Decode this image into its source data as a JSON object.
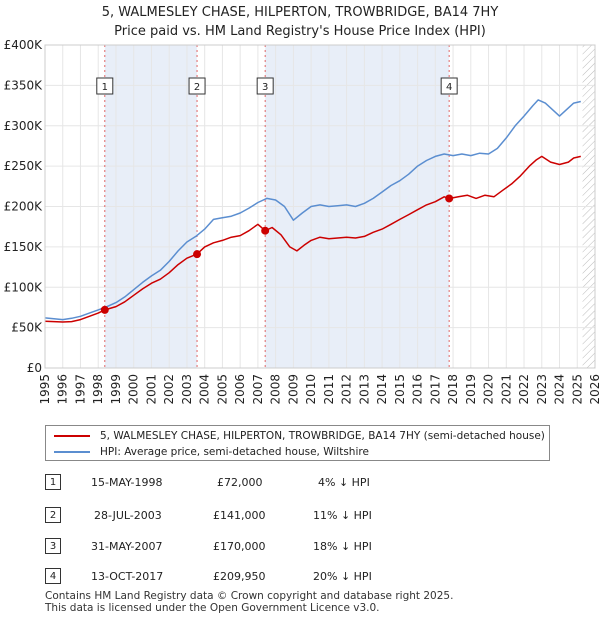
{
  "chart_data": {
    "type": "line",
    "title": "5, WALMESLEY CHASE, HILPERTON, TROWBRIDGE, BA14 7HY",
    "subtitle": "Price paid vs. HM Land Registry's House Price Index (HPI)",
    "xlim": [
      1995,
      2026
    ],
    "ylim": [
      0,
      400000
    ],
    "x_ticks": [
      "1995",
      "1996",
      "1997",
      "1998",
      "1999",
      "2000",
      "2001",
      "2002",
      "2003",
      "2004",
      "2005",
      "2006",
      "2007",
      "2008",
      "2009",
      "2010",
      "2011",
      "2012",
      "2013",
      "2014",
      "2015",
      "2016",
      "2017",
      "2018",
      "2019",
      "2020",
      "2021",
      "2022",
      "2023",
      "2024",
      "2025",
      "2026"
    ],
    "y_ticks": [
      {
        "value": 0,
        "label": "£0"
      },
      {
        "value": 50000,
        "label": "£50K"
      },
      {
        "value": 100000,
        "label": "£100K"
      },
      {
        "value": 150000,
        "label": "£150K"
      },
      {
        "value": 200000,
        "label": "£200K"
      },
      {
        "value": 250000,
        "label": "£250K"
      },
      {
        "value": 300000,
        "label": "£300K"
      },
      {
        "value": 350000,
        "label": "£350K"
      },
      {
        "value": 400000,
        "label": "£400K"
      }
    ],
    "data_end": 2025.3,
    "series": [
      {
        "name": "5, WALMESLEY CHASE, HILPERTON, TROWBRIDGE, BA14 7HY (semi-detached house)",
        "color": "#cc0000",
        "points": [
          [
            1995.0,
            58000
          ],
          [
            1995.5,
            57500
          ],
          [
            1996.0,
            57000
          ],
          [
            1996.5,
            57500
          ],
          [
            1997.0,
            60000
          ],
          [
            1997.5,
            64000
          ],
          [
            1998.0,
            68000
          ],
          [
            1998.37,
            72000
          ],
          [
            1999.0,
            76000
          ],
          [
            1999.5,
            82000
          ],
          [
            2000.0,
            90000
          ],
          [
            2000.5,
            98000
          ],
          [
            2001.0,
            105000
          ],
          [
            2001.5,
            110000
          ],
          [
            2002.0,
            118000
          ],
          [
            2002.5,
            128000
          ],
          [
            2003.0,
            136000
          ],
          [
            2003.57,
            141000
          ],
          [
            2004.0,
            150000
          ],
          [
            2004.5,
            155000
          ],
          [
            2005.0,
            158000
          ],
          [
            2005.5,
            162000
          ],
          [
            2006.0,
            164000
          ],
          [
            2006.5,
            170000
          ],
          [
            2007.0,
            178000
          ],
          [
            2007.41,
            170000
          ],
          [
            2007.8,
            174000
          ],
          [
            2008.3,
            165000
          ],
          [
            2008.8,
            150000
          ],
          [
            2009.2,
            145000
          ],
          [
            2009.6,
            152000
          ],
          [
            2010.0,
            158000
          ],
          [
            2010.5,
            162000
          ],
          [
            2011.0,
            160000
          ],
          [
            2011.5,
            161000
          ],
          [
            2012.0,
            162000
          ],
          [
            2012.5,
            161000
          ],
          [
            2013.0,
            163000
          ],
          [
            2013.5,
            168000
          ],
          [
            2014.0,
            172000
          ],
          [
            2014.5,
            178000
          ],
          [
            2015.0,
            184000
          ],
          [
            2015.5,
            190000
          ],
          [
            2016.0,
            196000
          ],
          [
            2016.5,
            202000
          ],
          [
            2017.0,
            206000
          ],
          [
            2017.5,
            212000
          ],
          [
            2017.78,
            209950
          ],
          [
            2018.3,
            212000
          ],
          [
            2018.8,
            214000
          ],
          [
            2019.3,
            210000
          ],
          [
            2019.8,
            214000
          ],
          [
            2020.3,
            212000
          ],
          [
            2020.8,
            220000
          ],
          [
            2021.3,
            228000
          ],
          [
            2021.8,
            238000
          ],
          [
            2022.3,
            250000
          ],
          [
            2022.7,
            258000
          ],
          [
            2023.0,
            262000
          ],
          [
            2023.5,
            255000
          ],
          [
            2024.0,
            252000
          ],
          [
            2024.5,
            255000
          ],
          [
            2024.8,
            260000
          ],
          [
            2025.2,
            262000
          ]
        ]
      },
      {
        "name": "HPI: Average price, semi-detached house, Wiltshire",
        "color": "#5b8ed0",
        "points": [
          [
            1995.0,
            62000
          ],
          [
            1995.5,
            61000
          ],
          [
            1996.0,
            60000
          ],
          [
            1996.5,
            61500
          ],
          [
            1997.0,
            64000
          ],
          [
            1997.5,
            68000
          ],
          [
            1998.0,
            72000
          ],
          [
            1998.5,
            76000
          ],
          [
            1999.0,
            81000
          ],
          [
            1999.5,
            88000
          ],
          [
            2000.0,
            97000
          ],
          [
            2000.5,
            106000
          ],
          [
            2001.0,
            114000
          ],
          [
            2001.5,
            121000
          ],
          [
            2002.0,
            132000
          ],
          [
            2002.5,
            145000
          ],
          [
            2003.0,
            156000
          ],
          [
            2003.5,
            163000
          ],
          [
            2004.0,
            172000
          ],
          [
            2004.5,
            184000
          ],
          [
            2005.0,
            186000
          ],
          [
            2005.5,
            188000
          ],
          [
            2006.0,
            192000
          ],
          [
            2006.5,
            198000
          ],
          [
            2007.0,
            205000
          ],
          [
            2007.5,
            210000
          ],
          [
            2008.0,
            208000
          ],
          [
            2008.5,
            200000
          ],
          [
            2009.0,
            183000
          ],
          [
            2009.5,
            192000
          ],
          [
            2010.0,
            200000
          ],
          [
            2010.5,
            202000
          ],
          [
            2011.0,
            200000
          ],
          [
            2011.5,
            201000
          ],
          [
            2012.0,
            202000
          ],
          [
            2012.5,
            200000
          ],
          [
            2013.0,
            204000
          ],
          [
            2013.5,
            210000
          ],
          [
            2014.0,
            218000
          ],
          [
            2014.5,
            226000
          ],
          [
            2015.0,
            232000
          ],
          [
            2015.5,
            240000
          ],
          [
            2016.0,
            250000
          ],
          [
            2016.5,
            257000
          ],
          [
            2017.0,
            262000
          ],
          [
            2017.5,
            265000
          ],
          [
            2018.0,
            263000
          ],
          [
            2018.5,
            265000
          ],
          [
            2019.0,
            263000
          ],
          [
            2019.5,
            266000
          ],
          [
            2020.0,
            265000
          ],
          [
            2020.5,
            272000
          ],
          [
            2021.0,
            285000
          ],
          [
            2021.5,
            300000
          ],
          [
            2022.0,
            312000
          ],
          [
            2022.5,
            325000
          ],
          [
            2022.8,
            332000
          ],
          [
            2023.2,
            328000
          ],
          [
            2023.6,
            320000
          ],
          [
            2024.0,
            312000
          ],
          [
            2024.4,
            320000
          ],
          [
            2024.8,
            328000
          ],
          [
            2025.2,
            330000
          ]
        ]
      }
    ],
    "sales": [
      {
        "label": "1",
        "year": 1998.37,
        "price": 72000,
        "date": "15-MAY-1998",
        "price_text": "£72,000",
        "hpi_text": "4% ↓ HPI"
      },
      {
        "label": "2",
        "year": 2003.57,
        "price": 141000,
        "date": "28-JUL-2003",
        "price_text": "£141,000",
        "hpi_text": "11% ↓ HPI"
      },
      {
        "label": "3",
        "year": 2007.41,
        "price": 170000,
        "date": "31-MAY-2007",
        "price_text": "£170,000",
        "hpi_text": "18% ↓ HPI"
      },
      {
        "label": "4",
        "year": 2017.78,
        "price": 209950,
        "date": "13-OCT-2017",
        "price_text": "£209,950",
        "hpi_text": "20% ↓ HPI"
      }
    ],
    "legend": [
      {
        "label": "5, WALMESLEY CHASE, HILPERTON, TROWBRIDGE, BA14 7HY (semi-detached house)",
        "color": "#cc0000"
      },
      {
        "label": "HPI: Average price, semi-detached house, Wiltshire",
        "color": "#5b8ed0"
      }
    ]
  },
  "footer": {
    "line1": "Contains HM Land Registry data © Crown copyright and database right 2025.",
    "line2": "This data is licensed under the Open Government Licence v3.0."
  }
}
